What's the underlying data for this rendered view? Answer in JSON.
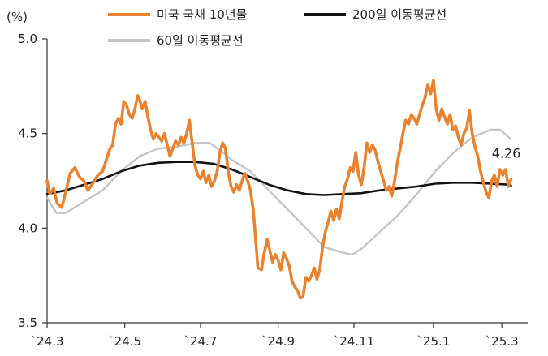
{
  "chart_data": {
    "type": "line",
    "unit_label": "(%)",
    "ylim": [
      3.5,
      5.0
    ],
    "y_ticks": [
      "5.0",
      "4.5",
      "4.0",
      "3.5"
    ],
    "y_tick_values": [
      5.0,
      4.5,
      4.0,
      3.5
    ],
    "x_range": [
      0,
      26
    ],
    "x_ticks": [
      {
        "label": "`24.3",
        "x": 0
      },
      {
        "label": "`24.5",
        "x": 4.2
      },
      {
        "label": "`24.7",
        "x": 8.3
      },
      {
        "label": "`24.9",
        "x": 12.5
      },
      {
        "label": "`24.11",
        "x": 16.6
      },
      {
        "label": "`25.1",
        "x": 20.9
      },
      {
        "label": "`25.3",
        "x": 24.6
      }
    ],
    "grid": false,
    "legend_position": "top",
    "series": [
      {
        "name": "미국 국채 10년물",
        "color": "#E8822E",
        "points": [
          [
            0,
            4.25
          ],
          [
            0.15,
            4.18
          ],
          [
            0.35,
            4.21
          ],
          [
            0.55,
            4.13
          ],
          [
            0.8,
            4.11
          ],
          [
            1.0,
            4.19
          ],
          [
            1.25,
            4.29
          ],
          [
            1.5,
            4.32
          ],
          [
            1.75,
            4.27
          ],
          [
            2.0,
            4.25
          ],
          [
            2.2,
            4.2
          ],
          [
            2.5,
            4.24
          ],
          [
            2.75,
            4.28
          ],
          [
            3.0,
            4.3
          ],
          [
            3.2,
            4.36
          ],
          [
            3.4,
            4.42
          ],
          [
            3.55,
            4.44
          ],
          [
            3.7,
            4.55
          ],
          [
            3.85,
            4.58
          ],
          [
            4.0,
            4.55
          ],
          [
            4.15,
            4.67
          ],
          [
            4.3,
            4.65
          ],
          [
            4.45,
            4.6
          ],
          [
            4.6,
            4.58
          ],
          [
            4.75,
            4.63
          ],
          [
            4.9,
            4.7
          ],
          [
            5.0,
            4.68
          ],
          [
            5.15,
            4.63
          ],
          [
            5.3,
            4.67
          ],
          [
            5.45,
            4.59
          ],
          [
            5.6,
            4.52
          ],
          [
            5.75,
            4.47
          ],
          [
            5.9,
            4.5
          ],
          [
            6.05,
            4.48
          ],
          [
            6.2,
            4.46
          ],
          [
            6.35,
            4.5
          ],
          [
            6.5,
            4.44
          ],
          [
            6.65,
            4.38
          ],
          [
            6.8,
            4.42
          ],
          [
            6.95,
            4.46
          ],
          [
            7.1,
            4.44
          ],
          [
            7.25,
            4.48
          ],
          [
            7.4,
            4.45
          ],
          [
            7.55,
            4.5
          ],
          [
            7.7,
            4.57
          ],
          [
            7.85,
            4.45
          ],
          [
            8.0,
            4.33
          ],
          [
            8.15,
            4.28
          ],
          [
            8.3,
            4.26
          ],
          [
            8.45,
            4.3
          ],
          [
            8.6,
            4.24
          ],
          [
            8.75,
            4.28
          ],
          [
            8.9,
            4.22
          ],
          [
            9.05,
            4.25
          ],
          [
            9.2,
            4.3
          ],
          [
            9.35,
            4.4
          ],
          [
            9.5,
            4.45
          ],
          [
            9.65,
            4.42
          ],
          [
            9.8,
            4.3
          ],
          [
            9.95,
            4.22
          ],
          [
            10.1,
            4.19
          ],
          [
            10.25,
            4.23
          ],
          [
            10.4,
            4.2
          ],
          [
            10.55,
            4.25
          ],
          [
            10.7,
            4.29
          ],
          [
            10.85,
            4.25
          ],
          [
            11.0,
            4.2
          ],
          [
            11.15,
            4.1
          ],
          [
            11.25,
            3.98
          ],
          [
            11.4,
            3.79
          ],
          [
            11.6,
            3.78
          ],
          [
            11.75,
            3.87
          ],
          [
            11.9,
            3.94
          ],
          [
            12.05,
            3.88
          ],
          [
            12.2,
            3.82
          ],
          [
            12.35,
            3.86
          ],
          [
            12.5,
            3.83
          ],
          [
            12.65,
            3.78
          ],
          [
            12.8,
            3.87
          ],
          [
            12.95,
            3.84
          ],
          [
            13.1,
            3.8
          ],
          [
            13.25,
            3.72
          ],
          [
            13.4,
            3.69
          ],
          [
            13.55,
            3.67
          ],
          [
            13.7,
            3.63
          ],
          [
            13.85,
            3.64
          ],
          [
            14.0,
            3.74
          ],
          [
            14.15,
            3.72
          ],
          [
            14.3,
            3.75
          ],
          [
            14.45,
            3.79
          ],
          [
            14.6,
            3.73
          ],
          [
            14.75,
            3.78
          ],
          [
            14.9,
            3.9
          ],
          [
            15.05,
            3.98
          ],
          [
            15.2,
            4.03
          ],
          [
            15.35,
            4.09
          ],
          [
            15.5,
            4.04
          ],
          [
            15.65,
            4.1
          ],
          [
            15.8,
            4.05
          ],
          [
            15.95,
            4.14
          ],
          [
            16.1,
            4.22
          ],
          [
            16.25,
            4.26
          ],
          [
            16.4,
            4.32
          ],
          [
            16.55,
            4.3
          ],
          [
            16.7,
            4.4
          ],
          [
            16.85,
            4.28
          ],
          [
            17.0,
            4.23
          ],
          [
            17.15,
            4.32
          ],
          [
            17.3,
            4.45
          ],
          [
            17.45,
            4.4
          ],
          [
            17.6,
            4.44
          ],
          [
            17.75,
            4.41
          ],
          [
            17.9,
            4.35
          ],
          [
            18.05,
            4.3
          ],
          [
            18.2,
            4.25
          ],
          [
            18.35,
            4.2
          ],
          [
            18.5,
            4.22
          ],
          [
            18.65,
            4.17
          ],
          [
            18.8,
            4.25
          ],
          [
            18.95,
            4.35
          ],
          [
            19.1,
            4.42
          ],
          [
            19.25,
            4.5
          ],
          [
            19.4,
            4.57
          ],
          [
            19.55,
            4.55
          ],
          [
            19.7,
            4.6
          ],
          [
            19.85,
            4.58
          ],
          [
            20.0,
            4.55
          ],
          [
            20.15,
            4.6
          ],
          [
            20.3,
            4.65
          ],
          [
            20.45,
            4.69
          ],
          [
            20.6,
            4.76
          ],
          [
            20.75,
            4.71
          ],
          [
            20.9,
            4.78
          ],
          [
            21.05,
            4.63
          ],
          [
            21.2,
            4.57
          ],
          [
            21.35,
            4.63
          ],
          [
            21.5,
            4.59
          ],
          [
            21.65,
            4.55
          ],
          [
            21.8,
            4.6
          ],
          [
            21.95,
            4.52
          ],
          [
            22.1,
            4.54
          ],
          [
            22.25,
            4.48
          ],
          [
            22.4,
            4.44
          ],
          [
            22.55,
            4.5
          ],
          [
            22.7,
            4.53
          ],
          [
            22.85,
            4.62
          ],
          [
            23.0,
            4.5
          ],
          [
            23.15,
            4.43
          ],
          [
            23.3,
            4.38
          ],
          [
            23.45,
            4.3
          ],
          [
            23.6,
            4.24
          ],
          [
            23.75,
            4.19
          ],
          [
            23.9,
            4.16
          ],
          [
            24.05,
            4.25
          ],
          [
            24.2,
            4.28
          ],
          [
            24.35,
            4.22
          ],
          [
            24.5,
            4.31
          ],
          [
            24.65,
            4.28
          ],
          [
            24.8,
            4.31
          ],
          [
            24.95,
            4.22
          ],
          [
            25.1,
            4.26
          ]
        ]
      },
      {
        "name": "200일 이동평균선",
        "color": "#111111",
        "points": [
          [
            0,
            4.18
          ],
          [
            1,
            4.2
          ],
          [
            2,
            4.23
          ],
          [
            3,
            4.26
          ],
          [
            4,
            4.3
          ],
          [
            5,
            4.33
          ],
          [
            6,
            4.345
          ],
          [
            7,
            4.35
          ],
          [
            8,
            4.35
          ],
          [
            9,
            4.34
          ],
          [
            10,
            4.31
          ],
          [
            11,
            4.27
          ],
          [
            12,
            4.23
          ],
          [
            13,
            4.2
          ],
          [
            14,
            4.18
          ],
          [
            15,
            4.175
          ],
          [
            16,
            4.18
          ],
          [
            17,
            4.185
          ],
          [
            18,
            4.2
          ],
          [
            19,
            4.21
          ],
          [
            20,
            4.22
          ],
          [
            21,
            4.235
          ],
          [
            22,
            4.24
          ],
          [
            23,
            4.24
          ],
          [
            24,
            4.235
          ],
          [
            25,
            4.23
          ],
          [
            25.1,
            4.225
          ]
        ]
      },
      {
        "name": "60일 이동평균선",
        "color": "#C4C4C4",
        "points": [
          [
            0,
            4.16
          ],
          [
            0.5,
            4.08
          ],
          [
            1,
            4.08
          ],
          [
            2,
            4.14
          ],
          [
            3,
            4.2
          ],
          [
            4,
            4.3
          ],
          [
            5,
            4.38
          ],
          [
            6,
            4.42
          ],
          [
            7,
            4.43
          ],
          [
            8,
            4.45
          ],
          [
            8.8,
            4.45
          ],
          [
            9.5,
            4.4
          ],
          [
            10,
            4.36
          ],
          [
            11,
            4.3
          ],
          [
            12,
            4.2
          ],
          [
            13,
            4.1
          ],
          [
            14,
            4.0
          ],
          [
            15,
            3.9
          ],
          [
            16,
            3.87
          ],
          [
            16.5,
            3.86
          ],
          [
            17,
            3.89
          ],
          [
            18,
            3.98
          ],
          [
            19,
            4.07
          ],
          [
            20,
            4.18
          ],
          [
            21,
            4.3
          ],
          [
            22,
            4.4
          ],
          [
            23,
            4.48
          ],
          [
            24,
            4.52
          ],
          [
            24.5,
            4.52
          ],
          [
            25.1,
            4.47
          ]
        ]
      }
    ],
    "annotations": [
      {
        "text": "4.26",
        "x": 25.1,
        "y": 4.26
      }
    ]
  }
}
